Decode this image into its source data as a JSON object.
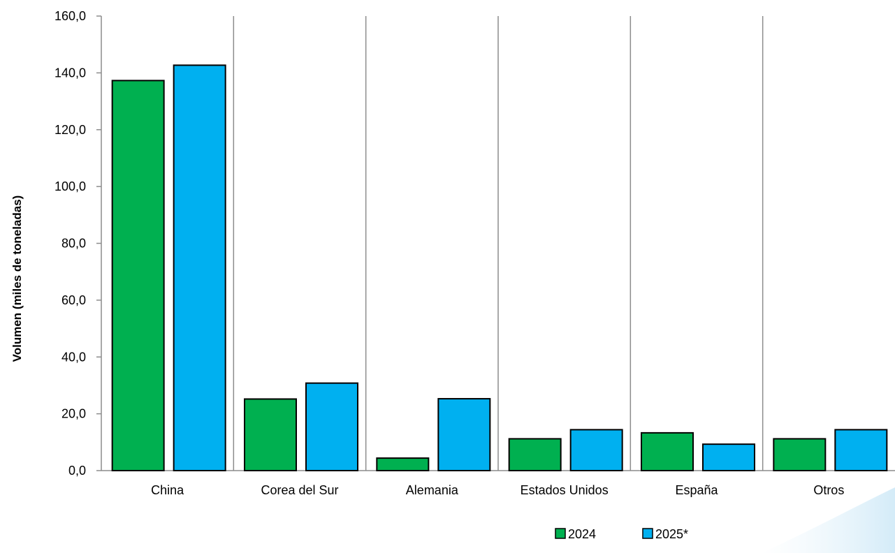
{
  "chart_data": {
    "type": "bar",
    "categories": [
      "China",
      "Corea del Sur",
      "Alemania",
      "Estados Unidos",
      "España",
      "Otros"
    ],
    "series": [
      {
        "name": "2024",
        "values": [
          137.3,
          25.2,
          4.4,
          11.2,
          13.3,
          11.2
        ],
        "color": "#00b050"
      },
      {
        "name": "2025*",
        "values": [
          142.7,
          30.8,
          25.3,
          14.4,
          9.3,
          14.4
        ],
        "color": "#00b0f0"
      }
    ],
    "ylabel": "Volumen  (miles de toneladas)",
    "ylim": [
      0,
      160
    ],
    "yticks": [
      "0,0",
      "20,0",
      "40,0",
      "60,0",
      "80,0",
      "100,0",
      "120,0",
      "140,0",
      "160,0"
    ],
    "grid": "vertical category separators",
    "legend_position": "bottom"
  }
}
